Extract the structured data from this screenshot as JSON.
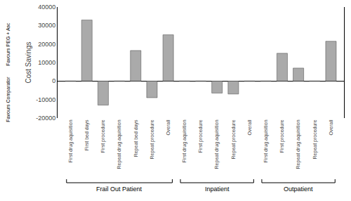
{
  "chart_data": {
    "type": "bar",
    "categories": [
      "First drug aquisition",
      "First bed days",
      "First procedure",
      "Repeat drug aquisition",
      "Repeat bed days",
      "Repeat procedure",
      "Overall",
      "First drug aquisition",
      "First procedure",
      "Repeat drug aquisition",
      "Repeat procedure",
      "Overall",
      "First drug aquisition",
      "First procedure",
      "Repeat drug aquisition",
      "Repeat procedure",
      "Overall"
    ],
    "values": [
      0,
      33000,
      -13000,
      0,
      16500,
      -9000,
      25000,
      0,
      0,
      -6500,
      -7000,
      0,
      0,
      15000,
      7000,
      0,
      21500
    ],
    "color": "#aaaaaa",
    "ylabel": "Cost Savings",
    "annotations": [
      "Favours PEG + Asc",
      "Favours Comparator"
    ],
    "groups": [
      {
        "label": "Frail Out Patient",
        "start": 0,
        "end": 6
      },
      {
        "label": "Inpatient",
        "start": 7,
        "end": 11
      },
      {
        "label": "Outpatient",
        "start": 12,
        "end": 16
      }
    ],
    "ylim": [
      -20000,
      40000
    ],
    "yticks": [
      -20000,
      -10000,
      0,
      10000,
      20000,
      30000,
      40000
    ],
    "grid": false
  }
}
